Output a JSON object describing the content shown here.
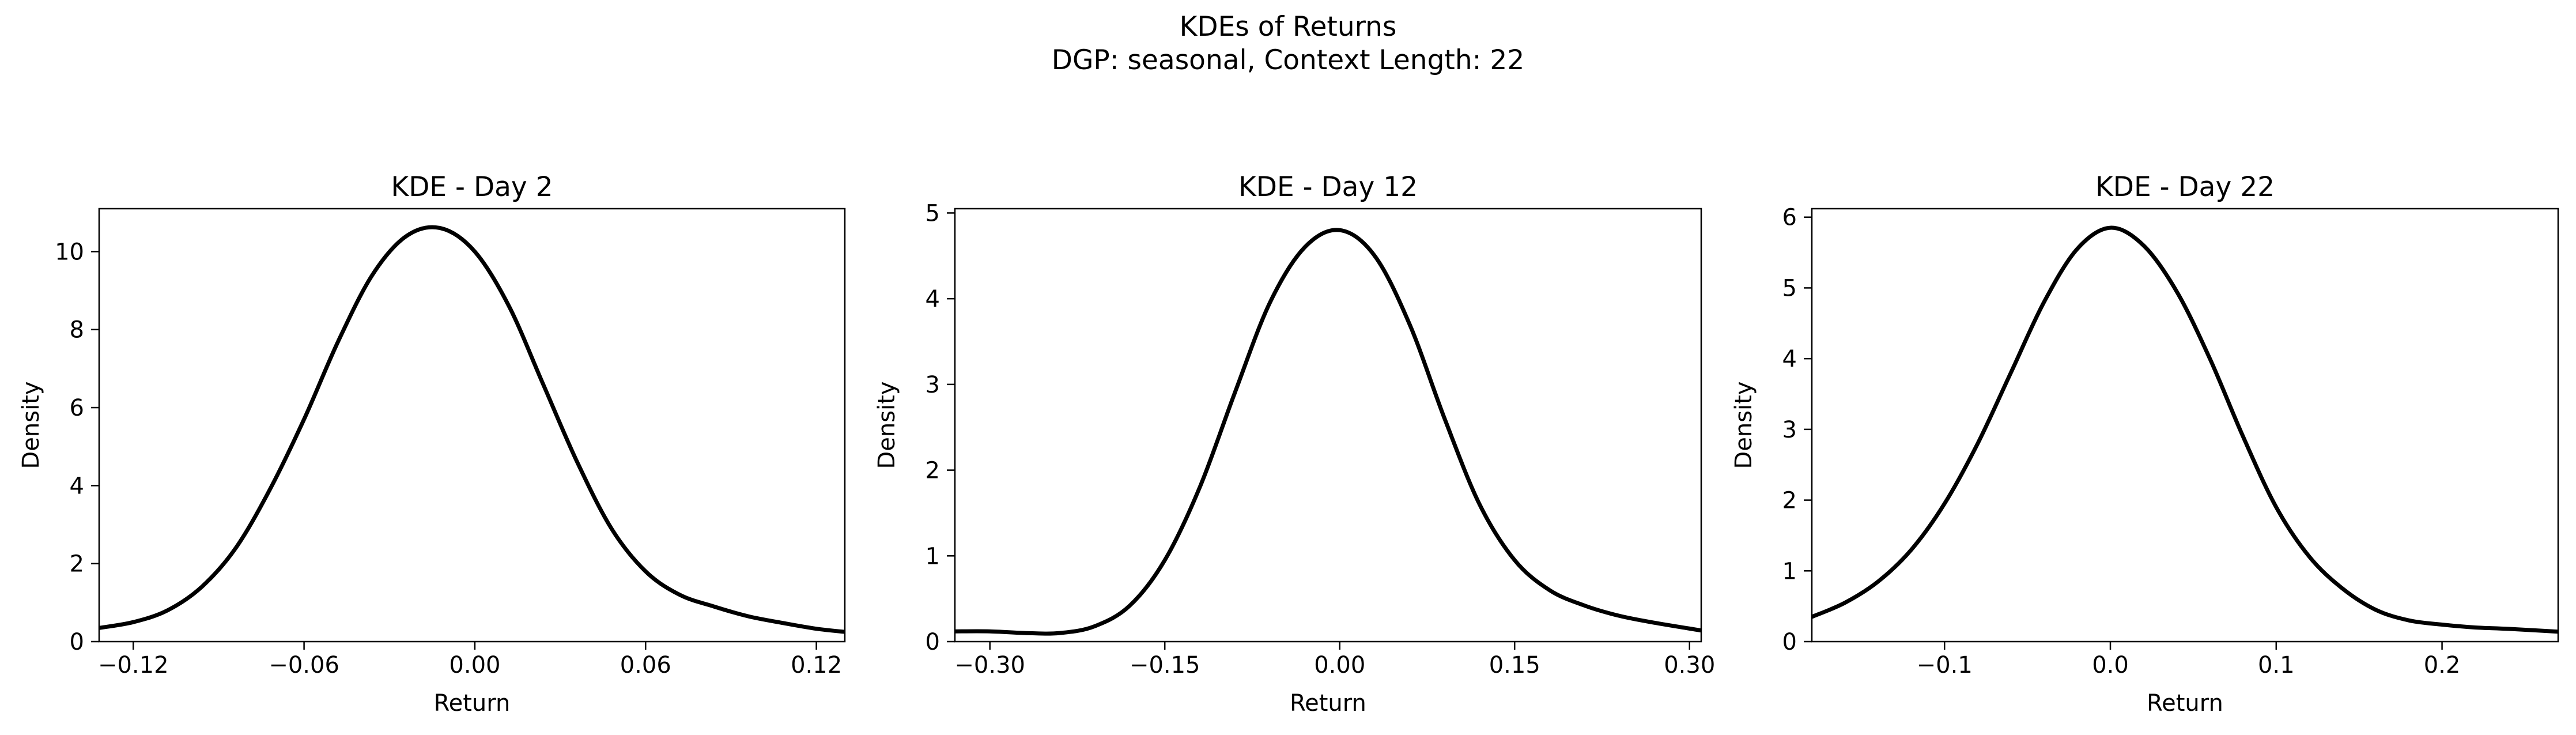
{
  "figure": {
    "title_line1": "KDEs of Returns",
    "title_line2": "DGP: seasonal, Context Length: 22"
  },
  "chart_data": [
    {
      "type": "line",
      "title": "KDE - Day 2",
      "xlabel": "Return",
      "ylabel": "Density",
      "xlim": [
        -0.132,
        0.13
      ],
      "ylim": [
        0,
        11.1
      ],
      "xticks": [
        -0.12,
        -0.06,
        0.0,
        0.06,
        0.12
      ],
      "xtick_labels": [
        "−0.12",
        "−0.06",
        "0.00",
        "0.06",
        "0.12"
      ],
      "yticks": [
        0,
        2,
        4,
        6,
        8,
        10
      ],
      "ytick_labels": [
        "0",
        "2",
        "4",
        "6",
        "8",
        "10"
      ],
      "grid": false,
      "line_color": "#000000",
      "x": [
        -0.132,
        -0.12,
        -0.108,
        -0.096,
        -0.084,
        -0.072,
        -0.06,
        -0.048,
        -0.036,
        -0.024,
        -0.012,
        0.0,
        0.012,
        0.024,
        0.036,
        0.048,
        0.06,
        0.072,
        0.084,
        0.096,
        0.108,
        0.12,
        0.13
      ],
      "y": [
        0.35,
        0.5,
        0.8,
        1.4,
        2.4,
        3.9,
        5.7,
        7.7,
        9.4,
        10.4,
        10.6,
        10.0,
        8.6,
        6.6,
        4.6,
        2.9,
        1.8,
        1.2,
        0.9,
        0.65,
        0.48,
        0.33,
        0.25
      ]
    },
    {
      "type": "line",
      "title": "KDE - Day 12",
      "xlabel": "Return",
      "ylabel": "Density",
      "xlim": [
        -0.33,
        0.31
      ],
      "ylim": [
        0,
        5.05
      ],
      "xticks": [
        -0.3,
        -0.15,
        0.0,
        0.15,
        0.3
      ],
      "xtick_labels": [
        "−0.30",
        "−0.15",
        "0.00",
        "0.15",
        "0.30"
      ],
      "yticks": [
        0,
        1,
        2,
        3,
        4,
        5
      ],
      "ytick_labels": [
        "0",
        "1",
        "2",
        "3",
        "4",
        "5"
      ],
      "grid": false,
      "line_color": "#000000",
      "x": [
        -0.33,
        -0.3,
        -0.27,
        -0.24,
        -0.21,
        -0.18,
        -0.15,
        -0.12,
        -0.09,
        -0.06,
        -0.03,
        0.0,
        0.03,
        0.06,
        0.09,
        0.12,
        0.15,
        0.18,
        0.21,
        0.24,
        0.27,
        0.31
      ],
      "y": [
        0.12,
        0.12,
        0.1,
        0.1,
        0.18,
        0.42,
        0.95,
        1.8,
        2.9,
        3.95,
        4.6,
        4.8,
        4.5,
        3.7,
        2.6,
        1.6,
        0.95,
        0.6,
        0.42,
        0.3,
        0.22,
        0.13
      ]
    },
    {
      "type": "line",
      "title": "KDE - Day 22",
      "xlabel": "Return",
      "ylabel": "Density",
      "xlim": [
        -0.18,
        0.27
      ],
      "ylim": [
        0,
        6.12
      ],
      "xticks": [
        -0.1,
        0.0,
        0.1,
        0.2
      ],
      "xtick_labels": [
        "−0.1",
        "0.0",
        "0.1",
        "0.2"
      ],
      "yticks": [
        0,
        1,
        2,
        3,
        4,
        5,
        6
      ],
      "ytick_labels": [
        "0",
        "1",
        "2",
        "3",
        "4",
        "5",
        "6"
      ],
      "grid": false,
      "line_color": "#000000",
      "x": [
        -0.18,
        -0.16,
        -0.14,
        -0.12,
        -0.1,
        -0.08,
        -0.06,
        -0.04,
        -0.02,
        0.0,
        0.02,
        0.04,
        0.06,
        0.08,
        0.1,
        0.12,
        0.14,
        0.16,
        0.18,
        0.2,
        0.22,
        0.24,
        0.27
      ],
      "y": [
        0.35,
        0.55,
        0.85,
        1.3,
        1.95,
        2.8,
        3.8,
        4.8,
        5.55,
        5.85,
        5.6,
        4.95,
        4.0,
        2.9,
        1.9,
        1.2,
        0.75,
        0.45,
        0.3,
        0.24,
        0.2,
        0.18,
        0.14
      ]
    }
  ]
}
